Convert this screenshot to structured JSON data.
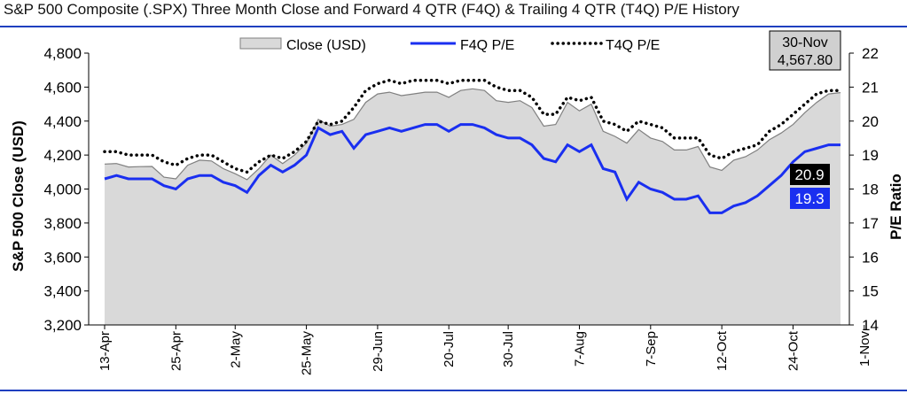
{
  "title": "S&P 500 Composite (.SPX) Three Month Close and Forward 4 QTR (F4Q) & Trailing 4 QTR (T4Q) P/E History",
  "colors": {
    "rule": "#1f3fbf",
    "close_fill": "#d9d9d9",
    "close_line": "#808080",
    "f4q": "#1a2ff0",
    "t4q": "#000000",
    "f4q_callout_bg": "#1a2ff0",
    "t4q_callout_bg": "#000000"
  },
  "chart_data": {
    "type": "area+line",
    "title": "S&P 500 Composite (.SPX) Three Month Close and Forward 4 QTR (F4Q) & Trailing 4 QTR (T4Q) P/E History",
    "ylabel_left": "S&P 500 Close (USD)",
    "ylabel_right": "P/E Ratio",
    "ylim_left": [
      3200,
      4800
    ],
    "ylim_right": [
      14,
      22
    ],
    "yticks_left": [
      "3,200",
      "3,400",
      "3,600",
      "3,800",
      "4,000",
      "4,200",
      "4,400",
      "4,600",
      "4,800"
    ],
    "yticks_right": [
      "14",
      "15",
      "16",
      "17",
      "18",
      "19",
      "20",
      "21",
      "22"
    ],
    "xtick_labels": [
      "13-Apr",
      "25-Apr",
      "2-May",
      "25-May",
      "29-Jun",
      "20-Jul",
      "30-Jul",
      "7-Aug",
      "7-Sep",
      "12-Oct",
      "24-Oct",
      "1-Nov",
      "30-Nov"
    ],
    "xtick_index": [
      0,
      6,
      11,
      17,
      23,
      29,
      34,
      40,
      46,
      52,
      58,
      64,
      69
    ],
    "legend": {
      "position": "top",
      "items": [
        "Close (USD)",
        "F4Q P/E",
        "T4Q P/E"
      ]
    },
    "grid": false,
    "series": [
      {
        "name": "Close (USD)",
        "axis": "left",
        "style": "area",
        "values": [
          4147,
          4150,
          4130,
          4132,
          4133,
          4070,
          4060,
          4140,
          4170,
          4165,
          4120,
          4090,
          4055,
          4120,
          4200,
          4150,
          4200,
          4270,
          4410,
          4370,
          4380,
          4410,
          4510,
          4560,
          4570,
          4550,
          4560,
          4570,
          4570,
          4540,
          4580,
          4590,
          4580,
          4520,
          4510,
          4520,
          4480,
          4370,
          4380,
          4510,
          4460,
          4500,
          4340,
          4310,
          4270,
          4350,
          4300,
          4280,
          4230,
          4230,
          4250,
          4130,
          4110,
          4170,
          4190,
          4230,
          4290,
          4330,
          4380,
          4450,
          4510,
          4560,
          4567.8
        ]
      },
      {
        "name": "F4Q P/E",
        "axis": "right",
        "style": "line",
        "values": [
          18.3,
          18.4,
          18.3,
          18.3,
          18.3,
          18.1,
          18.0,
          18.3,
          18.4,
          18.4,
          18.2,
          18.1,
          17.9,
          18.4,
          18.7,
          18.5,
          18.7,
          19.0,
          19.8,
          19.6,
          19.7,
          19.2,
          19.6,
          19.7,
          19.8,
          19.7,
          19.8,
          19.9,
          19.9,
          19.7,
          19.9,
          19.9,
          19.8,
          19.6,
          19.5,
          19.5,
          19.3,
          18.9,
          18.8,
          19.3,
          19.1,
          19.3,
          18.6,
          18.5,
          17.7,
          18.2,
          18.0,
          17.9,
          17.7,
          17.7,
          17.8,
          17.3,
          17.3,
          17.5,
          17.6,
          17.8,
          18.1,
          18.4,
          18.8,
          19.1,
          19.2,
          19.3,
          19.3
        ]
      },
      {
        "name": "T4Q P/E",
        "axis": "right",
        "style": "dotted",
        "values": [
          19.1,
          19.1,
          19.0,
          19.0,
          19.0,
          18.8,
          18.7,
          18.9,
          19.0,
          19.0,
          18.8,
          18.6,
          18.5,
          18.8,
          19.0,
          18.9,
          19.1,
          19.4,
          20.0,
          19.9,
          20.0,
          20.4,
          20.9,
          21.1,
          21.2,
          21.1,
          21.2,
          21.2,
          21.2,
          21.1,
          21.2,
          21.2,
          21.2,
          21.0,
          20.9,
          20.9,
          20.7,
          20.2,
          20.2,
          20.7,
          20.6,
          20.7,
          20.0,
          19.9,
          19.7,
          20.0,
          19.9,
          19.8,
          19.5,
          19.5,
          19.5,
          19.0,
          18.9,
          19.1,
          19.2,
          19.3,
          19.7,
          19.9,
          20.2,
          20.5,
          20.8,
          20.9,
          20.9
        ]
      }
    ],
    "annotations": [
      {
        "label": "30-Nov",
        "value": "4,567.80"
      },
      {
        "series": "T4Q P/E",
        "value": "20.9"
      },
      {
        "series": "F4Q P/E",
        "value": "19.3"
      }
    ]
  }
}
